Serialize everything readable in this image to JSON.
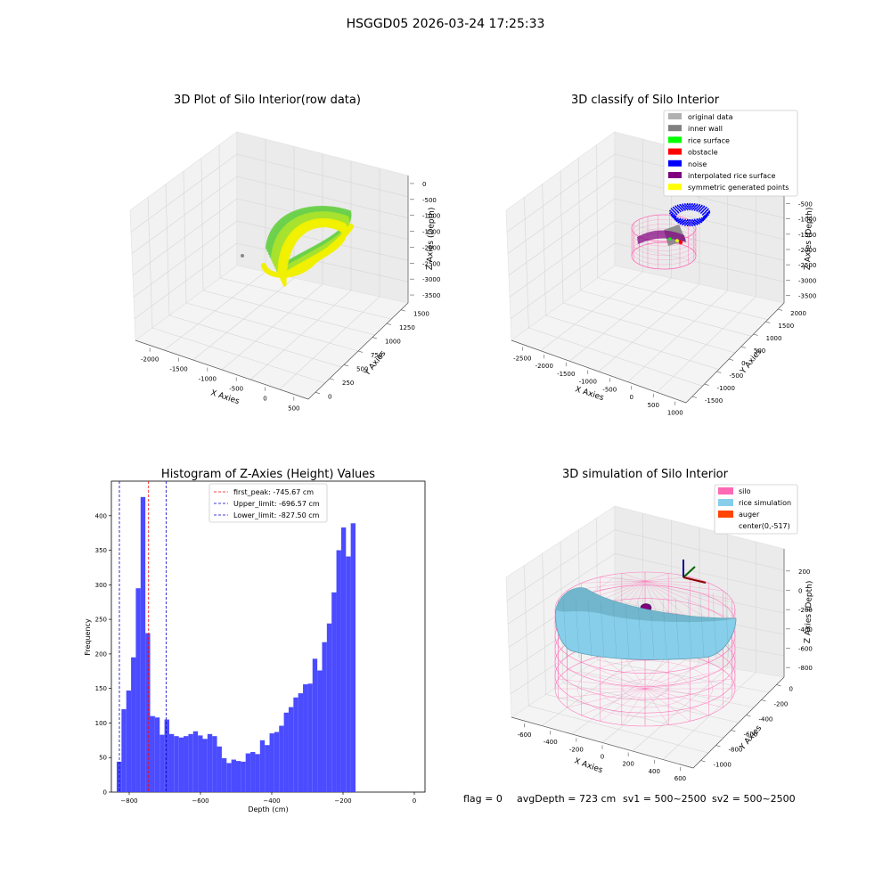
{
  "figure_title": "HSGGD05 2026-03-24 17:25:33",
  "footer": {
    "flag": "flag = 0",
    "avg_depth": "avgDepth = 723 cm",
    "sv1": "sv1 = 500~2500",
    "sv2": "sv2 = 500~2500"
  },
  "colors": {
    "hist_bar": "#4b4bff",
    "first_peak": "#ff0000",
    "limit": "#0000cc",
    "silo": "#ff69b4",
    "rice_sim": "#87ceeb",
    "auger": "#ff4500",
    "green_points": "#6bd14b",
    "yellow_points": "#f0f000",
    "noise": "#0000ff",
    "interp": "#800080",
    "original": "#b0b0b0",
    "inner_wall": "#808080",
    "rice_surface": "#00ff00",
    "obstacle": "#ff0000",
    "symmetric": "#ffff00"
  },
  "chart_data": [
    {
      "type": "scatter",
      "title": "3D Plot of Silo Interior(row data)",
      "xlabel": "X Axies",
      "ylabel": "Y Axies",
      "zlabel": "Z Axies (Depth)",
      "x_ticks": [
        "-2000",
        "-1500",
        "-1000",
        "-500",
        "0",
        "500"
      ],
      "y_ticks": [
        "0",
        "250",
        "500",
        "750",
        "1000",
        "1250",
        "1500"
      ],
      "z_ticks": [
        "0",
        "-500",
        "-1000",
        "-1500",
        "-2000",
        "-2500",
        "-3000",
        "-3500"
      ],
      "xlim": [
        -2200,
        500
      ],
      "ylim": [
        0,
        1600
      ],
      "zlim": [
        -3700,
        0
      ],
      "grid": true
    },
    {
      "type": "scatter",
      "title": "3D classify of Silo Interior",
      "x_ticks": [
        "-2500",
        "-2000",
        "-1500",
        "-1000",
        "-500",
        "0",
        "500",
        "1000"
      ],
      "y_ticks": [
        "-1500",
        "-1000",
        "-500",
        "0",
        "500",
        "1000",
        "1500",
        "2000"
      ],
      "z_ticks": [
        "-500",
        "-1000",
        "-1500",
        "-2000",
        "-2500",
        "-3000",
        "-3500"
      ],
      "xlabel": "X Axies",
      "ylabel": "Y Axies",
      "zlabel": "Z Axies (Depth)",
      "legend_position": "top-right",
      "legend": [
        {
          "label": "original data",
          "color": "#b0b0b0"
        },
        {
          "label": "inner wall",
          "color": "#808080"
        },
        {
          "label": "rice surface",
          "color": "#00ff00"
        },
        {
          "label": "obstacle",
          "color": "#ff0000"
        },
        {
          "label": "noise",
          "color": "#0000ff"
        },
        {
          "label": "interpolated rice surface",
          "color": "#800080"
        },
        {
          "label": "symmetric generated points",
          "color": "#ffff00"
        }
      ],
      "grid": true
    },
    {
      "type": "bar",
      "title": "Histogram of Z-Axies (Height) Values",
      "xlabel": "Depth (cm)",
      "ylabel": "Frequency",
      "xlim": [
        -850,
        30
      ],
      "ylim": [
        0,
        450
      ],
      "x_ticks": [
        -800,
        -600,
        -400,
        -200,
        0
      ],
      "y_ticks": [
        0,
        50,
        100,
        150,
        200,
        250,
        300,
        350,
        400
      ],
      "bin_start": -835,
      "bin_width": 13.4,
      "values": [
        44,
        120,
        147,
        195,
        295,
        427,
        230,
        110,
        108,
        83,
        105,
        84,
        81,
        79,
        81,
        84,
        88,
        82,
        77,
        84,
        81,
        66,
        49,
        42,
        47,
        45,
        44,
        56,
        58,
        55,
        75,
        68,
        85,
        87,
        96,
        115,
        123,
        137,
        143,
        156,
        157,
        193,
        176,
        217,
        244,
        289,
        350,
        383,
        341,
        389
      ],
      "lines": [
        {
          "label": "first_peak: -745.67 cm",
          "x": -745.67,
          "color": "#ff0000"
        },
        {
          "label": "Upper_limit: -696.57 cm",
          "x": -696.57,
          "color": "#0000cc"
        },
        {
          "label": "Lower_limit: -827.50 cm",
          "x": -827.5,
          "color": "#0000cc"
        }
      ],
      "legend_position": "top-center",
      "grid": false
    },
    {
      "type": "scatter",
      "title": "3D simulation of Silo Interior",
      "xlabel": "X Axies",
      "ylabel": "Y Axies",
      "zlabel": "Z Axies (Depth)",
      "x_ticks": [
        "-600",
        "-400",
        "-200",
        "0",
        "200",
        "400",
        "600"
      ],
      "y_ticks": [
        "-1000",
        "-800",
        "-600",
        "-400",
        "-200",
        "0"
      ],
      "z_ticks": [
        "200",
        "0",
        "-200",
        "-400",
        "-600",
        "-800"
      ],
      "legend_position": "top-right",
      "legend": [
        {
          "label": "silo",
          "color": "#ff69b4"
        },
        {
          "label": "rice simulation",
          "color": "#87ceeb"
        },
        {
          "label": "auger",
          "color": "#ff4500"
        },
        {
          "label": "center(0,-517)",
          "color": ""
        }
      ],
      "grid": true
    }
  ]
}
